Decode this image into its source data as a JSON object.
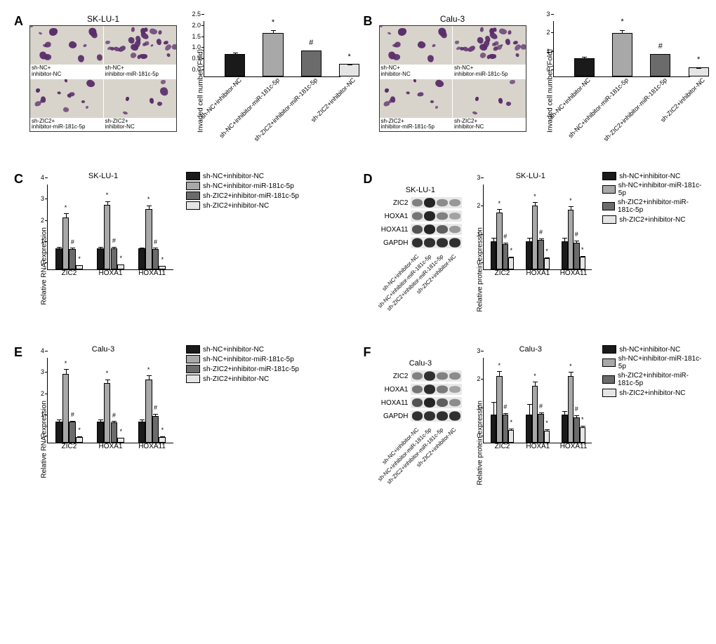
{
  "colors": {
    "bar1": "#1a1a1a",
    "bar2": "#a8a8a8",
    "bar3": "#6b6b6b",
    "bar4": "#e5e5e5",
    "axis": "#000000",
    "bg": "#ffffff",
    "micro_bg": "#d8d4cc",
    "blob": "#5a2d6a",
    "band_dark": "#2a2a2a",
    "band_light": "#888888"
  },
  "conditions": [
    "sh-NC+inhibitor-NC",
    "sh-NC+inhibitor-miR-181c-5p",
    "sh-ZIC2+inhibitor-miR-181c-5p",
    "sh-ZIC2+inhibitor-NC"
  ],
  "genes": [
    "ZIC2",
    "HOXA1",
    "HOXA11"
  ],
  "wb_proteins": [
    "ZIC2",
    "HOXA1",
    "HOXA11",
    "GAPDH"
  ],
  "panels": {
    "A": {
      "title": "SK-LU-1",
      "type": "bar",
      "ylabel": "Invaded cell number (Fold)",
      "ylim": [
        0,
        2.5
      ],
      "ytick_step": 0.5,
      "values": [
        1.0,
        1.97,
        1.17,
        0.56
      ],
      "errors": [
        0.25,
        0.2,
        0.08,
        0.06
      ],
      "sigs": [
        "",
        "*",
        "#",
        "*"
      ],
      "micro_density": [
        14,
        28,
        12,
        6
      ]
    },
    "B": {
      "title": "Calu-3",
      "type": "bar",
      "ylabel": "Invaded cell number (Fold)",
      "ylim": [
        0,
        3
      ],
      "ytick_step": 1,
      "values": [
        1.0,
        2.35,
        1.2,
        0.5
      ],
      "errors": [
        0.3,
        0.28,
        0.1,
        0.08
      ],
      "sigs": [
        "",
        "*",
        "#",
        "*"
      ],
      "micro_density": [
        12,
        30,
        10,
        5
      ]
    },
    "C": {
      "title": "SK-LU-1",
      "type": "grouped-bar",
      "ylabel": "Relative RNA expression",
      "ylim": [
        0,
        4
      ],
      "ytick_step": 1,
      "series": [
        {
          "values": [
            1.0,
            2.45,
            0.95,
            0.2
          ],
          "errors": [
            0.1,
            0.22,
            0.1,
            0.05
          ],
          "sigs": [
            "",
            "*",
            "#",
            "*"
          ]
        },
        {
          "values": [
            1.0,
            3.05,
            1.0,
            0.22
          ],
          "errors": [
            0.1,
            0.2,
            0.1,
            0.05
          ],
          "sigs": [
            "",
            "*",
            "#",
            "*"
          ]
        },
        {
          "values": [
            1.0,
            2.85,
            0.95,
            0.18
          ],
          "errors": [
            0.08,
            0.2,
            0.1,
            0.05
          ],
          "sigs": [
            "",
            "*",
            "#",
            "*"
          ]
        }
      ]
    },
    "D": {
      "title": "SK-LU-1",
      "type": "grouped-bar",
      "ylabel": "Relative protein expression",
      "ylim": [
        0,
        3
      ],
      "ytick_step": 1,
      "series": [
        {
          "values": [
            1.0,
            2.0,
            0.9,
            0.42
          ],
          "errors": [
            0.15,
            0.15,
            0.08,
            0.06
          ],
          "sigs": [
            "",
            "*",
            "#",
            "*"
          ]
        },
        {
          "values": [
            1.0,
            2.25,
            1.03,
            0.4
          ],
          "errors": [
            0.15,
            0.15,
            0.1,
            0.06
          ],
          "sigs": [
            "",
            "*",
            "#",
            "*"
          ]
        },
        {
          "values": [
            1.0,
            2.1,
            0.95,
            0.45
          ],
          "errors": [
            0.15,
            0.15,
            0.1,
            0.06
          ],
          "sigs": [
            "",
            "*",
            "#",
            "*"
          ]
        }
      ],
      "wb_intensity": [
        [
          0.55,
          0.95,
          0.5,
          0.45
        ],
        [
          0.6,
          0.95,
          0.55,
          0.4
        ],
        [
          0.75,
          0.95,
          0.7,
          0.45
        ],
        [
          0.9,
          0.9,
          0.9,
          0.9
        ]
      ]
    },
    "E": {
      "title": "Calu-3",
      "type": "grouped-bar",
      "ylabel": "Relative RNA expression",
      "ylim": [
        0,
        4
      ],
      "ytick_step": 1,
      "series": [
        {
          "values": [
            1.0,
            3.25,
            0.98,
            0.28
          ],
          "errors": [
            0.15,
            0.25,
            0.1,
            0.06
          ],
          "sigs": [
            "",
            "*",
            "#",
            "*"
          ]
        },
        {
          "values": [
            1.0,
            2.8,
            0.95,
            0.22
          ],
          "errors": [
            0.15,
            0.22,
            0.1,
            0.06
          ],
          "sigs": [
            "",
            "*",
            "#",
            "*"
          ]
        },
        {
          "values": [
            1.0,
            2.98,
            1.25,
            0.28
          ],
          "errors": [
            0.15,
            0.22,
            0.15,
            0.06
          ],
          "sigs": [
            "",
            "*",
            "#",
            "*"
          ]
        }
      ]
    },
    "F": {
      "title": "Calu-3",
      "type": "grouped-bar",
      "ylabel": "Relative protein expression",
      "ylim": [
        0,
        3
      ],
      "ytick_step": 1,
      "series": [
        {
          "values": [
            1.0,
            2.35,
            1.0,
            0.45
          ],
          "errors": [
            0.5,
            0.2,
            0.08,
            0.08
          ],
          "sigs": [
            "",
            "*",
            "#",
            "*"
          ]
        },
        {
          "values": [
            1.0,
            2.0,
            1.02,
            0.42
          ],
          "errors": [
            0.4,
            0.18,
            0.08,
            0.08
          ],
          "sigs": [
            "",
            "*",
            "#",
            "*"
          ]
        },
        {
          "values": [
            1.0,
            2.35,
            0.9,
            0.55
          ],
          "errors": [
            0.15,
            0.18,
            0.1,
            0.08
          ],
          "sigs": [
            "",
            "*",
            "#",
            "*"
          ]
        }
      ],
      "wb_intensity": [
        [
          0.55,
          0.9,
          0.55,
          0.5
        ],
        [
          0.6,
          0.92,
          0.58,
          0.4
        ],
        [
          0.75,
          0.95,
          0.7,
          0.5
        ],
        [
          0.9,
          0.9,
          0.9,
          0.9
        ]
      ]
    }
  }
}
